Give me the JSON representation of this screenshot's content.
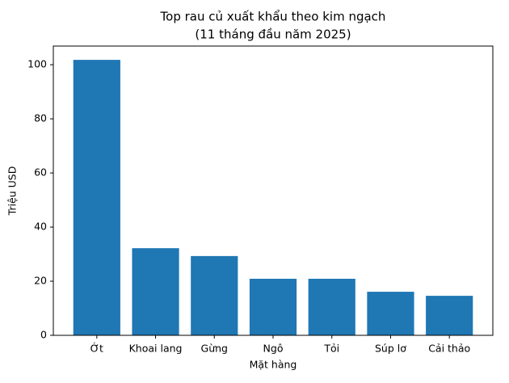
{
  "chart_data": {
    "type": "bar",
    "title": "Top rau củ xuất khẩu theo kim ngạch",
    "subtitle": "(11 tháng đầu năm 2025)",
    "x_label": "Mặt hàng",
    "y_label": "Triệu USD",
    "categories": [
      "Ớt",
      "Khoai lang",
      "Gừng",
      "Ngô",
      "Tỏi",
      "Súp lơ",
      "Cải thảo"
    ],
    "values": [
      101.8,
      32.2,
      29.3,
      20.9,
      20.9,
      16.1,
      14.6
    ],
    "color": "#1f77b4",
    "ylim": [
      0,
      106.9
    ],
    "yticks": [
      0,
      20,
      40,
      60,
      80,
      100
    ],
    "grid": false
  }
}
